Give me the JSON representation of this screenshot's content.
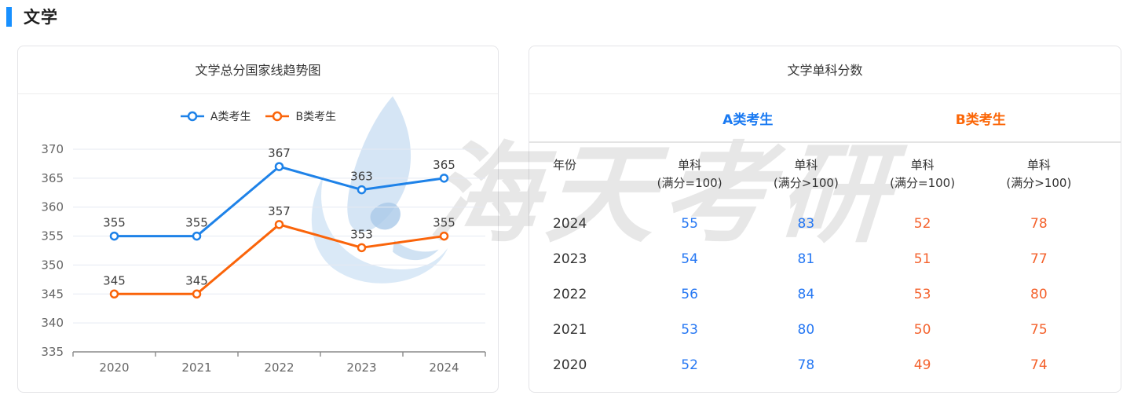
{
  "page": {
    "section_title": "文学",
    "accent_color": "#1890ff"
  },
  "watermark": {
    "text": "海天考研",
    "logo": "sail-swoosh-logo"
  },
  "chart_panel": {
    "title": "文学总分国家线趋势图",
    "legend": [
      {
        "label": "A类考生",
        "color": "#1e82e8"
      },
      {
        "label": "B类考生",
        "color": "#fa640a"
      }
    ]
  },
  "chart_data": {
    "type": "line",
    "title": "文学总分国家线趋势图",
    "categories": [
      "2020",
      "2021",
      "2022",
      "2023",
      "2024"
    ],
    "series": [
      {
        "name": "A类考生",
        "color": "#1e82e8",
        "values": [
          355,
          355,
          367,
          363,
          365
        ]
      },
      {
        "name": "B类考生",
        "color": "#fa640a",
        "values": [
          345,
          345,
          357,
          353,
          355
        ]
      }
    ],
    "ylim": [
      335,
      370
    ],
    "yticks": [
      335,
      340,
      345,
      350,
      355,
      360,
      365,
      370
    ],
    "grid": true,
    "legend_position": "top",
    "xlabel": "",
    "ylabel": ""
  },
  "table_panel": {
    "title": "文学单科分数",
    "year_header": "年份",
    "groups": [
      {
        "label": "A类考生",
        "color": "#1a7af2"
      },
      {
        "label": "B类考生",
        "color": "#fb6607"
      }
    ],
    "sub_headers": [
      {
        "line1": "单科",
        "line2": "(满分=100)"
      },
      {
        "line1": "单科",
        "line2": "(满分>100)"
      },
      {
        "line1": "单科",
        "line2": "(满分=100)"
      },
      {
        "line1": "单科",
        "line2": "(满分>100)"
      }
    ],
    "value_colors": [
      "#2577f3",
      "#2577f3",
      "#f4622d",
      "#f4622d"
    ],
    "rows": [
      {
        "year": "2024",
        "values": [
          "55",
          "83",
          "52",
          "78"
        ]
      },
      {
        "year": "2023",
        "values": [
          "54",
          "81",
          "51",
          "77"
        ]
      },
      {
        "year": "2022",
        "values": [
          "56",
          "84",
          "53",
          "80"
        ]
      },
      {
        "year": "2021",
        "values": [
          "53",
          "80",
          "50",
          "75"
        ]
      },
      {
        "year": "2020",
        "values": [
          "52",
          "78",
          "49",
          "74"
        ]
      }
    ]
  }
}
